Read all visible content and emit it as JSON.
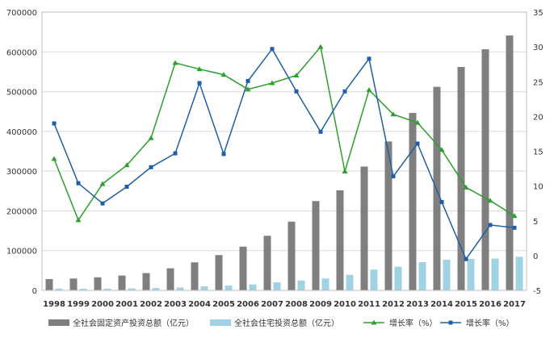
{
  "chart_data": {
    "type": "bar+line",
    "categories": [
      "1998",
      "1999",
      "2000",
      "2001",
      "2002",
      "2003",
      "2004",
      "2005",
      "2006",
      "2007",
      "2008",
      "2009",
      "2010",
      "2011",
      "2012",
      "2013",
      "2014",
      "2015",
      "2016",
      "2017"
    ],
    "left_axis": {
      "min": 0,
      "max": 700000,
      "step": 100000,
      "ticks": [
        "0",
        "100000",
        "200000",
        "300000",
        "400000",
        "500000",
        "600000",
        "700000"
      ]
    },
    "right_axis": {
      "min": -5,
      "max": 35,
      "step": 5,
      "ticks": [
        "-5",
        "0",
        "5",
        "10",
        "15",
        "20",
        "25",
        "30",
        "35"
      ]
    },
    "grid": true,
    "legend_position": "bottom",
    "series": [
      {
        "name": "全社会固定资产投资总额（亿元）",
        "kind": "bar",
        "axis": "left",
        "color": "#7f7f7f",
        "values": [
          28406,
          29855,
          32918,
          37214,
          43500,
          55567,
          70477,
          88774,
          109998,
          137324,
          172828,
          224599,
          251684,
          311485,
          374695,
          446294,
          512021,
          561999,
          606466,
          641238
        ]
      },
      {
        "name": "全社会住宅投资总额（亿元）",
        "kind": "bar",
        "axis": "left",
        "color": "#9fd3e3",
        "values": [
          4310,
          4010,
          4314,
          4969,
          5875,
          7236,
          10100,
          12300,
          14900,
          20300,
          24800,
          29900,
          38900,
          52400,
          59500,
          70900,
          77200,
          79200,
          80000,
          84600
        ]
      },
      {
        "name": "增长率（%）",
        "kind": "line",
        "axis": "right",
        "color": "#2ca02c",
        "marker": "triangle",
        "values": [
          13.9,
          5.1,
          10.3,
          13.0,
          16.9,
          27.7,
          26.8,
          26.0,
          23.9,
          24.8,
          25.9,
          30.0,
          12.1,
          23.8,
          20.3,
          19.1,
          15.2,
          9.8,
          7.9,
          5.7
        ]
      },
      {
        "name": "增长率（%）",
        "kind": "line",
        "axis": "right",
        "color": "#1f5fa8",
        "marker": "square",
        "values": [
          19.0,
          10.4,
          7.5,
          9.9,
          12.7,
          14.7,
          24.8,
          14.6,
          25.1,
          29.7,
          23.6,
          17.8,
          23.6,
          28.3,
          11.4,
          16.1,
          7.7,
          -0.5,
          4.4,
          4.0
        ]
      }
    ]
  }
}
